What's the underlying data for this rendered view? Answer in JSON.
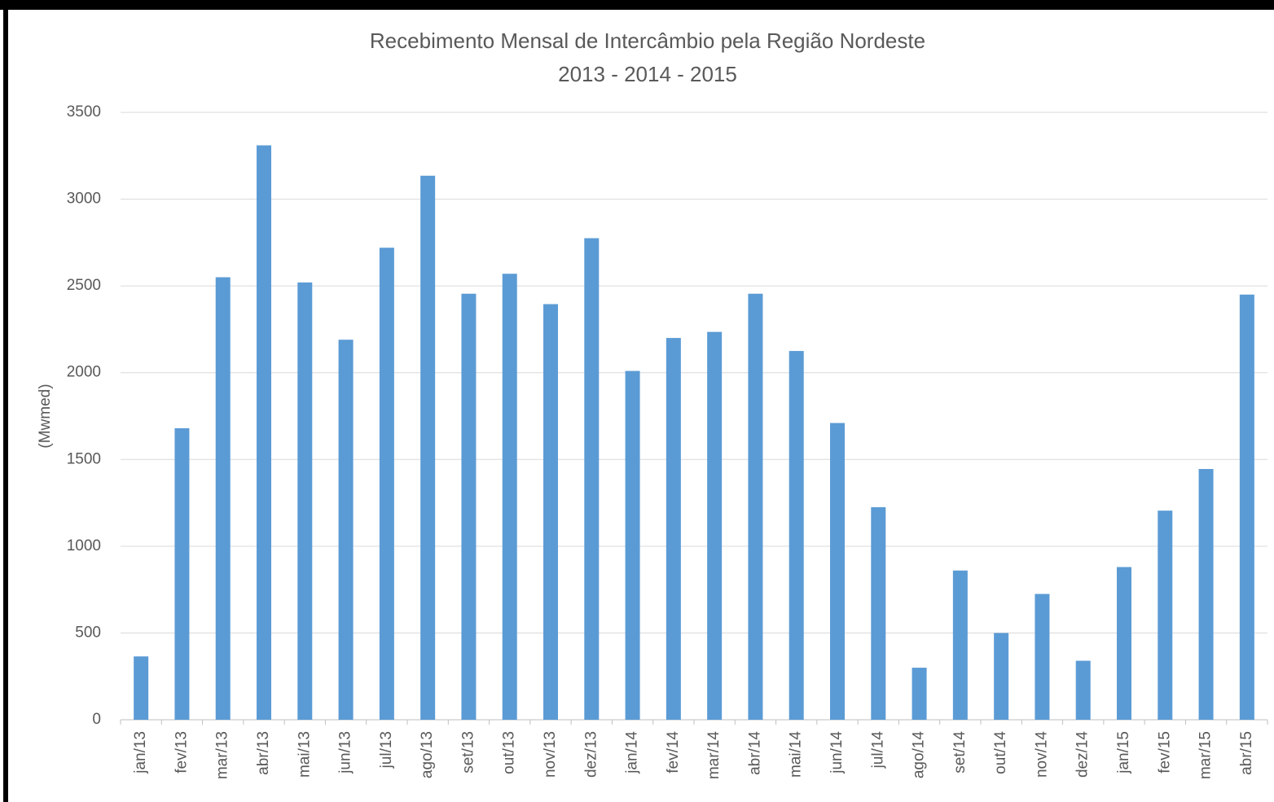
{
  "chart_data": {
    "type": "bar",
    "title": "Recebimento Mensal de Intercâmbio pela Região Nordeste",
    "subtitle": "2013 - 2014 - 2015",
    "y_label": "(Mwmed)",
    "categories": [
      "jan/13",
      "fev/13",
      "mar/13",
      "abr/13",
      "mai/13",
      "jun/13",
      "jul/13",
      "ago/13",
      "set/13",
      "out/13",
      "nov/13",
      "dez/13",
      "jan/14",
      "fev/14",
      "mar/14",
      "abr/14",
      "mai/14",
      "jun/14",
      "jul/14",
      "ago/14",
      "set/14",
      "out/14",
      "nov/14",
      "dez/14",
      "jan/15",
      "fev/15",
      "mar/15",
      "abr/15"
    ],
    "values": [
      365,
      1680,
      2550,
      3310,
      2520,
      2190,
      2720,
      3135,
      2455,
      2570,
      2395,
      2775,
      2010,
      2200,
      2235,
      2455,
      2125,
      1710,
      1225,
      300,
      860,
      500,
      725,
      340,
      880,
      1205,
      1445,
      2450
    ],
    "color": "#5b9bd5",
    "ylim": [
      0,
      3500
    ],
    "yticks": [
      0,
      500,
      1000,
      1500,
      2000,
      2500,
      3000,
      3500
    ],
    "grid": true
  }
}
